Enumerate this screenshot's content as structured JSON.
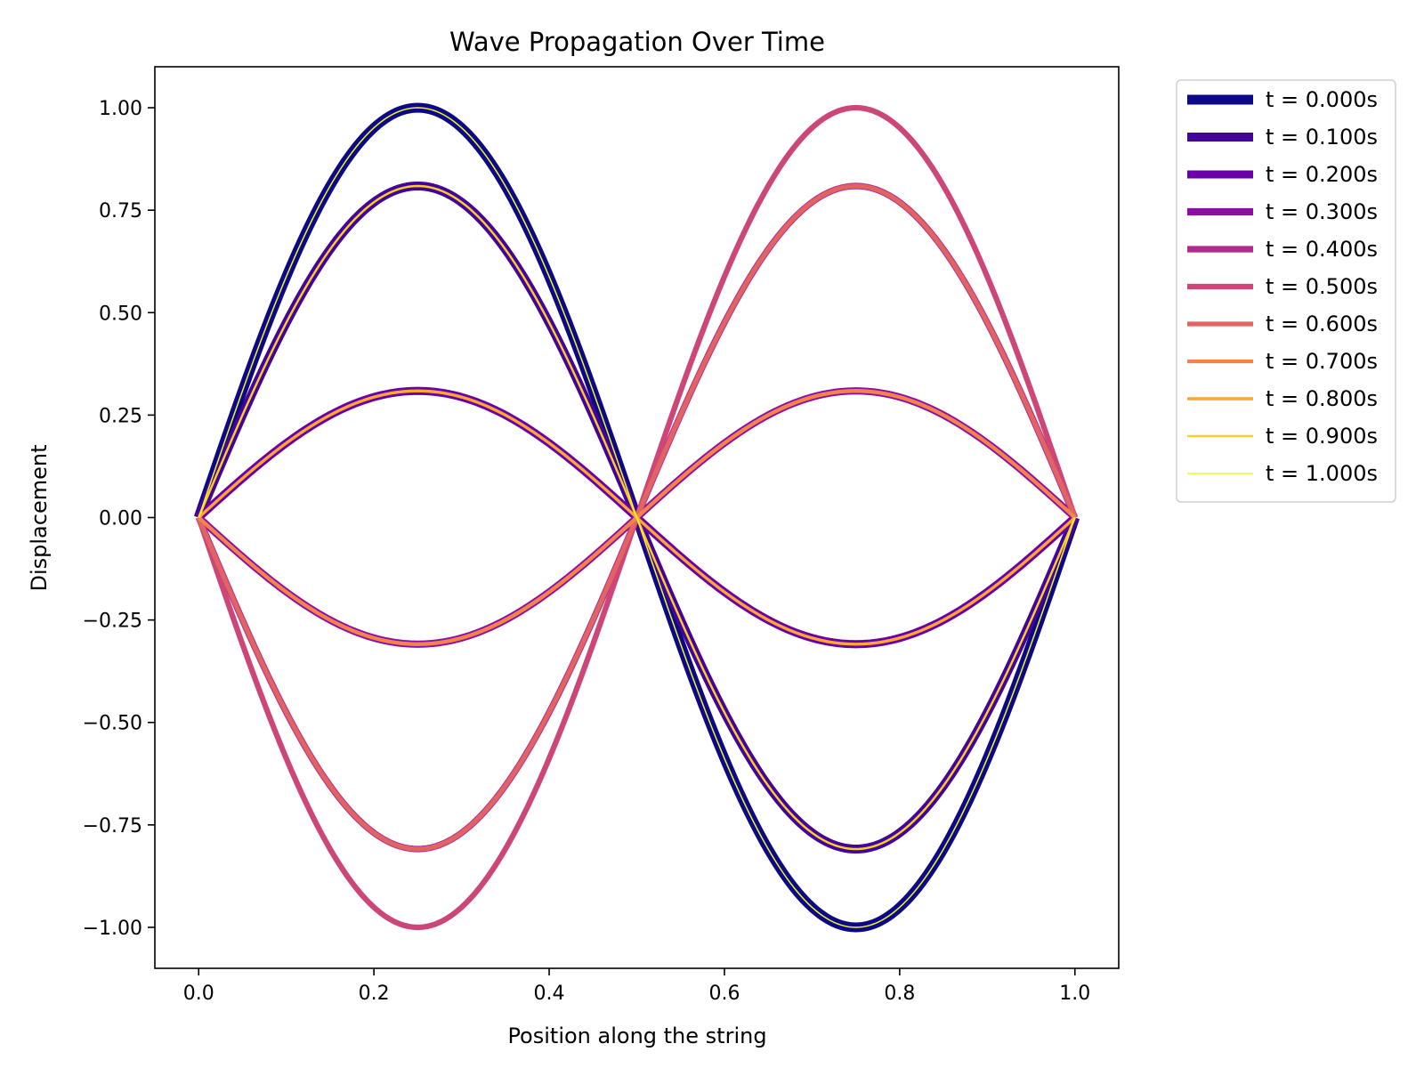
{
  "chart_data": {
    "type": "line",
    "title": "Wave Propagation Over Time",
    "xlabel": "Position along the string",
    "ylabel": "Displacement",
    "xlim": [
      -0.05,
      1.05
    ],
    "ylim": [
      -1.1,
      1.1
    ],
    "xticks": [
      0.0,
      0.2,
      0.4,
      0.6,
      0.8,
      1.0
    ],
    "xtick_labels": [
      "0.0",
      "0.2",
      "0.4",
      "0.6",
      "0.8",
      "1.0"
    ],
    "yticks": [
      -1.0,
      -0.75,
      -0.5,
      -0.25,
      0.0,
      0.25,
      0.5,
      0.75,
      1.0
    ],
    "ytick_labels": [
      "−1.00",
      "−0.75",
      "−0.50",
      "−0.25",
      "0.00",
      "0.25",
      "0.50",
      "0.75",
      "1.00"
    ],
    "grid": false,
    "legend_position": "outside-right-top",
    "function": "y = A(t) * sin(2*pi*x), x from 0 to 1",
    "series": [
      {
        "name": "t = 0.000s",
        "amplitude": 1.0,
        "color": "#0d0887"
      },
      {
        "name": "t = 0.100s",
        "amplitude": 0.809,
        "color": "#41049d"
      },
      {
        "name": "t = 0.200s",
        "amplitude": 0.309,
        "color": "#6a00a8"
      },
      {
        "name": "t = 0.300s",
        "amplitude": -0.309,
        "color": "#8f0da4"
      },
      {
        "name": "t = 0.400s",
        "amplitude": -0.809,
        "color": "#b12a90"
      },
      {
        "name": "t = 0.500s",
        "amplitude": -1.0,
        "color": "#cc4778"
      },
      {
        "name": "t = 0.600s",
        "amplitude": -0.809,
        "color": "#e16462"
      },
      {
        "name": "t = 0.700s",
        "amplitude": -0.309,
        "color": "#f2844b"
      },
      {
        "name": "t = 0.800s",
        "amplitude": 0.309,
        "color": "#fca636"
      },
      {
        "name": "t = 0.900s",
        "amplitude": 0.809,
        "color": "#fcce25"
      },
      {
        "name": "t = 1.000s",
        "amplitude": 1.0,
        "color": "#f0f921"
      }
    ]
  }
}
